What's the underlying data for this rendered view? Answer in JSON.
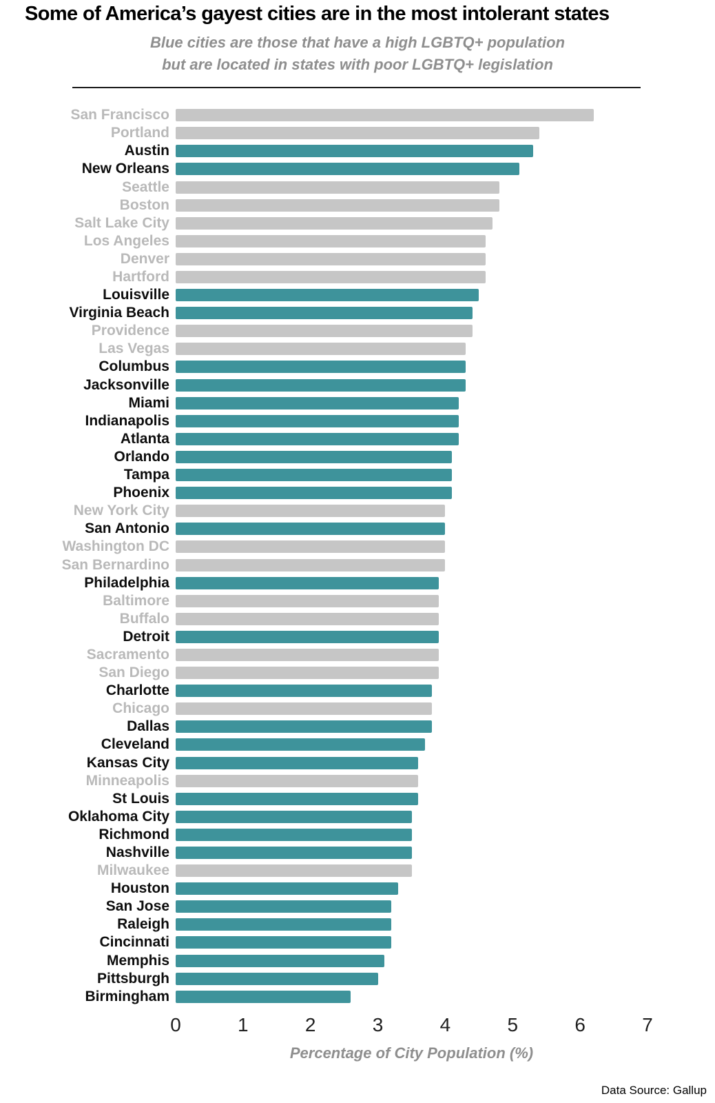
{
  "title": "Some of America’s gayest cities are in the most intolerant states",
  "subtitle": {
    "line1": "Blue cities are those that have a high LGBTQ+ population",
    "line2": "but are located in states with poor LGBTQ+ legislation"
  },
  "source": "Data Source: Gallup",
  "colors": {
    "highlight_bar": "#3e939b",
    "neutral_bar": "#c6c6c6",
    "highlight_label": "#0d0d0d",
    "neutral_label": "#b9b9b9"
  },
  "chart_data": {
    "type": "bar",
    "orientation": "horizontal",
    "xlabel": "Percentage of City Population (%)",
    "xlim": [
      0,
      7
    ],
    "xticks": [
      0,
      1,
      2,
      3,
      4,
      5,
      6,
      7
    ],
    "legend_note": "Blue (teal) bars = cities with high LGBTQ+ population located in states with poor LGBTQ+ legislation; gray bars = other cities",
    "rows": [
      {
        "city": "San Francisco",
        "value": 6.2,
        "highlighted": false
      },
      {
        "city": "Portland",
        "value": 5.4,
        "highlighted": false
      },
      {
        "city": "Austin",
        "value": 5.3,
        "highlighted": true
      },
      {
        "city": "New Orleans",
        "value": 5.1,
        "highlighted": true
      },
      {
        "city": "Seattle",
        "value": 4.8,
        "highlighted": false
      },
      {
        "city": "Boston",
        "value": 4.8,
        "highlighted": false
      },
      {
        "city": "Salt Lake City",
        "value": 4.7,
        "highlighted": false
      },
      {
        "city": "Los Angeles",
        "value": 4.6,
        "highlighted": false
      },
      {
        "city": "Denver",
        "value": 4.6,
        "highlighted": false
      },
      {
        "city": "Hartford",
        "value": 4.6,
        "highlighted": false
      },
      {
        "city": "Louisville",
        "value": 4.5,
        "highlighted": true
      },
      {
        "city": "Virginia Beach",
        "value": 4.4,
        "highlighted": true
      },
      {
        "city": "Providence",
        "value": 4.4,
        "highlighted": false
      },
      {
        "city": "Las Vegas",
        "value": 4.3,
        "highlighted": false
      },
      {
        "city": "Columbus",
        "value": 4.3,
        "highlighted": true
      },
      {
        "city": "Jacksonville",
        "value": 4.3,
        "highlighted": true
      },
      {
        "city": "Miami",
        "value": 4.2,
        "highlighted": true
      },
      {
        "city": "Indianapolis",
        "value": 4.2,
        "highlighted": true
      },
      {
        "city": "Atlanta",
        "value": 4.2,
        "highlighted": true
      },
      {
        "city": "Orlando",
        "value": 4.1,
        "highlighted": true
      },
      {
        "city": "Tampa",
        "value": 4.1,
        "highlighted": true
      },
      {
        "city": "Phoenix",
        "value": 4.1,
        "highlighted": true
      },
      {
        "city": "New York City",
        "value": 4.0,
        "highlighted": false
      },
      {
        "city": "San Antonio",
        "value": 4.0,
        "highlighted": true
      },
      {
        "city": "Washington DC",
        "value": 4.0,
        "highlighted": false
      },
      {
        "city": "San Bernardino",
        "value": 4.0,
        "highlighted": false
      },
      {
        "city": "Philadelphia",
        "value": 3.9,
        "highlighted": true
      },
      {
        "city": "Baltimore",
        "value": 3.9,
        "highlighted": false
      },
      {
        "city": "Buffalo",
        "value": 3.9,
        "highlighted": false
      },
      {
        "city": "Detroit",
        "value": 3.9,
        "highlighted": true
      },
      {
        "city": "Sacramento",
        "value": 3.9,
        "highlighted": false
      },
      {
        "city": "San Diego",
        "value": 3.9,
        "highlighted": false
      },
      {
        "city": "Charlotte",
        "value": 3.8,
        "highlighted": true
      },
      {
        "city": "Chicago",
        "value": 3.8,
        "highlighted": false
      },
      {
        "city": "Dallas",
        "value": 3.8,
        "highlighted": true
      },
      {
        "city": "Cleveland",
        "value": 3.7,
        "highlighted": true
      },
      {
        "city": "Kansas City",
        "value": 3.6,
        "highlighted": true
      },
      {
        "city": "Minneapolis",
        "value": 3.6,
        "highlighted": false
      },
      {
        "city": "St Louis",
        "value": 3.6,
        "highlighted": true
      },
      {
        "city": "Oklahoma City",
        "value": 3.5,
        "highlighted": true
      },
      {
        "city": "Richmond",
        "value": 3.5,
        "highlighted": true
      },
      {
        "city": "Nashville",
        "value": 3.5,
        "highlighted": true
      },
      {
        "city": "Milwaukee",
        "value": 3.5,
        "highlighted": false
      },
      {
        "city": "Houston",
        "value": 3.3,
        "highlighted": true
      },
      {
        "city": "San Jose",
        "value": 3.2,
        "highlighted": true
      },
      {
        "city": "Raleigh",
        "value": 3.2,
        "highlighted": true
      },
      {
        "city": "Cincinnati",
        "value": 3.2,
        "highlighted": true
      },
      {
        "city": "Memphis",
        "value": 3.1,
        "highlighted": true
      },
      {
        "city": "Pittsburgh",
        "value": 3.0,
        "highlighted": true
      },
      {
        "city": "Birmingham",
        "value": 2.6,
        "highlighted": true
      }
    ]
  }
}
